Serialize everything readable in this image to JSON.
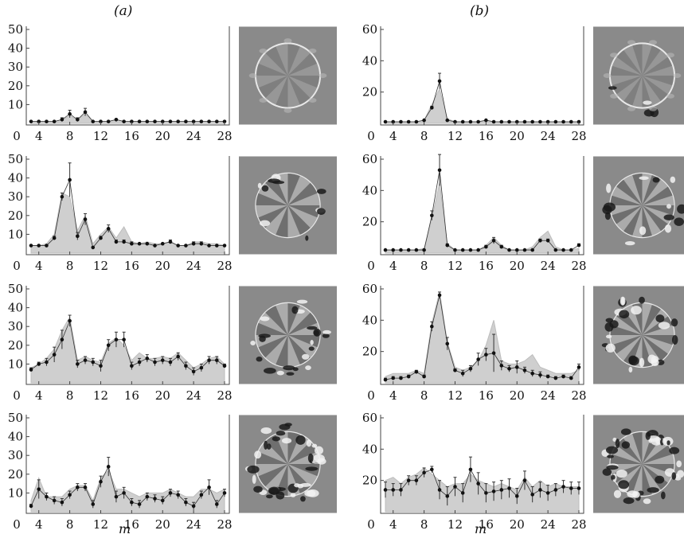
{
  "figure": {
    "panel_a_label": "(a)",
    "panel_b_label": "(b)",
    "xlabel_a": "m",
    "xlabel_b": "m",
    "colors": {
      "fill": "#cfcfcf",
      "line": "#333333",
      "point": "#111111",
      "axis": "#444444",
      "image_bg": "#8a8a8a"
    }
  },
  "chart_data": [
    {
      "type": "area",
      "panel": "a",
      "row": 1,
      "title": "",
      "xlabel": "",
      "ylabel": "",
      "xlim": [
        3,
        28
      ],
      "ylim": [
        0,
        50
      ],
      "xticks": [
        4,
        8,
        12,
        16,
        20,
        24,
        28
      ],
      "yticks": [
        10,
        20,
        30,
        40,
        50
      ],
      "x_origin_label": "0",
      "x": [
        3,
        4,
        5,
        6,
        7,
        8,
        9,
        10,
        11,
        12,
        13,
        14,
        15,
        16,
        17,
        18,
        19,
        20,
        21,
        22,
        23,
        24,
        25,
        26,
        27,
        28
      ],
      "values": [
        1,
        1,
        1,
        1,
        2,
        5,
        2,
        6,
        1,
        1,
        1,
        2,
        1,
        1,
        1,
        1,
        1,
        1,
        1,
        1,
        1,
        1,
        1,
        1,
        1,
        1
      ],
      "shade": [
        1,
        1,
        1,
        1,
        2,
        4,
        2,
        5,
        1,
        1,
        1,
        2,
        1,
        1,
        1,
        1,
        1,
        1,
        1,
        1,
        1,
        1,
        1,
        1,
        1,
        1
      ],
      "error": [
        0,
        0,
        0,
        0,
        1,
        2,
        1,
        2,
        0,
        0,
        0,
        0,
        0,
        0,
        0,
        0,
        0,
        0,
        0,
        0,
        0,
        0,
        0,
        0,
        0,
        0
      ]
    },
    {
      "type": "area",
      "panel": "a",
      "row": 2,
      "title": "",
      "xlabel": "",
      "ylabel": "",
      "xlim": [
        3,
        28
      ],
      "ylim": [
        0,
        50
      ],
      "xticks": [
        4,
        8,
        12,
        16,
        20,
        24,
        28
      ],
      "yticks": [
        10,
        20,
        30,
        40,
        50
      ],
      "x_origin_label": "0",
      "x": [
        3,
        4,
        5,
        6,
        7,
        8,
        9,
        10,
        11,
        12,
        13,
        14,
        15,
        16,
        17,
        18,
        19,
        20,
        21,
        22,
        23,
        24,
        25,
        26,
        27,
        28
      ],
      "values": [
        4,
        4,
        4,
        8,
        30,
        39,
        9,
        18,
        3,
        8,
        13,
        6,
        6,
        5,
        5,
        5,
        4,
        5,
        6,
        4,
        4,
        5,
        5,
        4,
        4,
        4
      ],
      "shade": [
        4,
        4,
        5,
        10,
        32,
        30,
        12,
        20,
        5,
        10,
        14,
        8,
        14,
        6,
        5,
        6,
        5,
        5,
        6,
        4,
        4,
        6,
        6,
        5,
        5,
        4
      ],
      "error": [
        0,
        0,
        0,
        1,
        2,
        9,
        2,
        3,
        0,
        1,
        2,
        1,
        1,
        1,
        0,
        0,
        0,
        0,
        1,
        0,
        0,
        1,
        1,
        0,
        0,
        0
      ]
    },
    {
      "type": "area",
      "panel": "a",
      "row": 3,
      "title": "",
      "xlabel": "",
      "ylabel": "",
      "xlim": [
        3,
        28
      ],
      "ylim": [
        0,
        50
      ],
      "xticks": [
        4,
        8,
        12,
        16,
        20,
        24,
        28
      ],
      "yticks": [
        10,
        20,
        30,
        40,
        50
      ],
      "x_origin_label": "0",
      "x": [
        3,
        4,
        5,
        6,
        7,
        8,
        9,
        10,
        11,
        12,
        13,
        14,
        15,
        16,
        17,
        18,
        19,
        20,
        21,
        22,
        23,
        24,
        25,
        26,
        27,
        28
      ],
      "values": [
        7,
        10,
        11,
        15,
        23,
        33,
        10,
        12,
        11,
        9,
        20,
        23,
        23,
        9,
        11,
        13,
        11,
        12,
        11,
        14,
        9,
        6,
        8,
        12,
        12,
        9
      ],
      "shade": [
        8,
        10,
        13,
        18,
        28,
        35,
        12,
        14,
        12,
        11,
        21,
        24,
        20,
        12,
        16,
        13,
        13,
        14,
        13,
        16,
        12,
        8,
        10,
        13,
        14,
        10
      ],
      "error": [
        1,
        1,
        2,
        4,
        5,
        3,
        2,
        2,
        2,
        3,
        3,
        4,
        4,
        2,
        2,
        2,
        2,
        2,
        2,
        2,
        2,
        2,
        2,
        2,
        2,
        1
      ]
    },
    {
      "type": "area",
      "panel": "a",
      "row": 4,
      "title": "",
      "xlabel": "",
      "ylabel": "",
      "xlim": [
        3,
        28
      ],
      "ylim": [
        0,
        50
      ],
      "xticks": [
        4,
        8,
        12,
        16,
        20,
        24,
        28
      ],
      "yticks": [
        10,
        20,
        30,
        40,
        50
      ],
      "x_origin_label": "0",
      "x": [
        3,
        4,
        5,
        6,
        7,
        8,
        9,
        10,
        11,
        12,
        13,
        14,
        15,
        16,
        17,
        18,
        19,
        20,
        21,
        22,
        23,
        24,
        25,
        26,
        27,
        28
      ],
      "values": [
        3,
        12,
        8,
        6,
        5,
        9,
        13,
        13,
        4,
        16,
        24,
        8,
        10,
        5,
        4,
        8,
        7,
        6,
        10,
        9,
        5,
        3,
        9,
        13,
        4,
        10
      ],
      "shade": [
        6,
        18,
        8,
        8,
        8,
        12,
        14,
        14,
        6,
        18,
        22,
        12,
        12,
        10,
        8,
        10,
        10,
        10,
        12,
        10,
        8,
        8,
        12,
        12,
        10,
        12
      ],
      "error": [
        1,
        5,
        2,
        2,
        2,
        2,
        2,
        2,
        2,
        3,
        5,
        3,
        3,
        2,
        2,
        2,
        2,
        2,
        2,
        2,
        2,
        2,
        2,
        4,
        2,
        2
      ]
    },
    {
      "type": "area",
      "panel": "b",
      "row": 1,
      "title": "",
      "xlabel": "",
      "ylabel": "",
      "xlim": [
        3,
        28
      ],
      "ylim": [
        0,
        60
      ],
      "xticks": [
        4,
        8,
        12,
        16,
        20,
        24,
        28
      ],
      "yticks": [
        20,
        40,
        60
      ],
      "x_origin_label": "0",
      "x": [
        3,
        4,
        5,
        6,
        7,
        8,
        9,
        10,
        11,
        12,
        13,
        14,
        15,
        16,
        17,
        18,
        19,
        20,
        21,
        22,
        23,
        24,
        25,
        26,
        27,
        28
      ],
      "values": [
        1,
        1,
        1,
        1,
        1,
        2,
        10,
        27,
        2,
        1,
        1,
        1,
        1,
        2,
        1,
        1,
        1,
        1,
        1,
        1,
        1,
        1,
        1,
        1,
        1,
        1
      ],
      "shade": [
        1,
        1,
        1,
        1,
        1,
        2,
        12,
        22,
        3,
        1,
        1,
        1,
        1,
        2,
        1,
        1,
        1,
        1,
        1,
        1,
        1,
        1,
        1,
        1,
        1,
        1
      ],
      "error": [
        0,
        0,
        0,
        0,
        0,
        0,
        1,
        5,
        0,
        0,
        0,
        0,
        0,
        0,
        0,
        0,
        0,
        0,
        0,
        0,
        0,
        0,
        0,
        0,
        0,
        0
      ]
    },
    {
      "type": "area",
      "panel": "b",
      "row": 2,
      "title": "",
      "xlabel": "",
      "ylabel": "",
      "xlim": [
        3,
        28
      ],
      "ylim": [
        0,
        60
      ],
      "xticks": [
        4,
        8,
        12,
        16,
        20,
        24,
        28
      ],
      "yticks": [
        20,
        40,
        60
      ],
      "x_origin_label": "0",
      "x": [
        3,
        4,
        5,
        6,
        7,
        8,
        9,
        10,
        11,
        12,
        13,
        14,
        15,
        16,
        17,
        18,
        19,
        20,
        21,
        22,
        23,
        24,
        25,
        26,
        27,
        28
      ],
      "values": [
        2,
        2,
        2,
        2,
        2,
        2,
        24,
        53,
        5,
        2,
        2,
        2,
        2,
        4,
        8,
        4,
        2,
        2,
        2,
        2,
        8,
        8,
        2,
        2,
        2,
        5
      ],
      "shade": [
        2,
        2,
        2,
        2,
        2,
        3,
        22,
        45,
        6,
        2,
        2,
        2,
        2,
        5,
        10,
        5,
        2,
        2,
        2,
        4,
        10,
        14,
        4,
        2,
        2,
        3
      ],
      "error": [
        0,
        0,
        0,
        0,
        0,
        0,
        3,
        10,
        1,
        0,
        0,
        0,
        0,
        1,
        2,
        1,
        0,
        0,
        0,
        0,
        1,
        1,
        0,
        0,
        0,
        1
      ]
    },
    {
      "type": "area",
      "panel": "b",
      "row": 3,
      "title": "",
      "xlabel": "",
      "ylabel": "",
      "xlim": [
        3,
        28
      ],
      "ylim": [
        0,
        60
      ],
      "xticks": [
        4,
        8,
        12,
        16,
        20,
        24,
        28
      ],
      "yticks": [
        20,
        40,
        60
      ],
      "x_origin_label": "0",
      "x": [
        3,
        4,
        5,
        6,
        7,
        8,
        9,
        10,
        11,
        12,
        13,
        14,
        15,
        16,
        17,
        18,
        19,
        20,
        21,
        22,
        23,
        24,
        25,
        26,
        27,
        28
      ],
      "values": [
        2,
        3,
        3,
        4,
        7,
        4,
        36,
        56,
        25,
        8,
        6,
        9,
        15,
        18,
        19,
        11,
        9,
        10,
        8,
        6,
        5,
        4,
        3,
        4,
        3,
        10
      ],
      "shade": [
        4,
        6,
        6,
        6,
        8,
        6,
        38,
        58,
        26,
        10,
        8,
        10,
        14,
        24,
        40,
        14,
        12,
        12,
        14,
        18,
        10,
        8,
        6,
        6,
        6,
        8
      ],
      "error": [
        1,
        1,
        1,
        1,
        1,
        1,
        3,
        2,
        4,
        1,
        2,
        2,
        4,
        4,
        12,
        3,
        2,
        4,
        2,
        2,
        2,
        1,
        1,
        1,
        1,
        2
      ]
    },
    {
      "type": "area",
      "panel": "b",
      "row": 4,
      "title": "",
      "xlabel": "",
      "ylabel": "",
      "xlim": [
        3,
        28
      ],
      "ylim": [
        0,
        60
      ],
      "xticks": [
        4,
        8,
        12,
        16,
        20,
        24,
        28
      ],
      "yticks": [
        20,
        40,
        60
      ],
      "x_origin_label": "0",
      "x": [
        3,
        4,
        5,
        6,
        7,
        8,
        9,
        10,
        11,
        12,
        13,
        14,
        15,
        16,
        17,
        18,
        19,
        20,
        21,
        22,
        23,
        24,
        25,
        26,
        27,
        28
      ],
      "values": [
        14,
        14,
        14,
        20,
        20,
        25,
        27,
        14,
        10,
        16,
        12,
        27,
        18,
        12,
        13,
        14,
        15,
        10,
        20,
        11,
        14,
        12,
        14,
        16,
        15,
        15
      ],
      "shade": [
        20,
        22,
        18,
        22,
        24,
        28,
        24,
        20,
        16,
        18,
        18,
        24,
        20,
        18,
        16,
        18,
        16,
        14,
        22,
        16,
        20,
        16,
        18,
        16,
        16,
        16
      ],
      "error": [
        5,
        4,
        4,
        3,
        3,
        3,
        2,
        6,
        6,
        6,
        6,
        8,
        7,
        6,
        6,
        6,
        6,
        5,
        6,
        5,
        5,
        5,
        4,
        4,
        4,
        4
      ]
    }
  ]
}
